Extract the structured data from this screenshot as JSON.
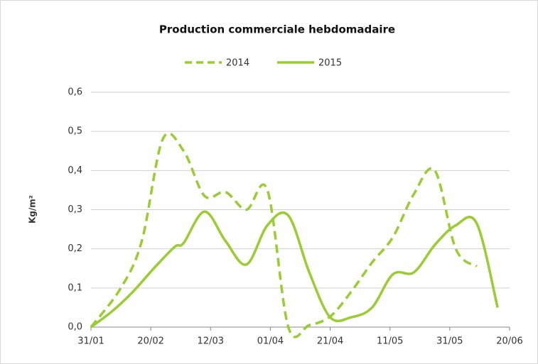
{
  "chart_data": {
    "type": "line",
    "title": "Production commerciale hebdomadaire",
    "ylabel": "Kg/m²",
    "legend": "top",
    "grid": true,
    "xlim": [
      "31/01",
      "20/06"
    ],
    "xticks": [
      "31/01",
      "20/02",
      "12/03",
      "01/04",
      "21/04",
      "11/05",
      "31/05",
      "20/06"
    ],
    "ylim": [
      0,
      0.6
    ],
    "yticks": [
      {
        "value": 0,
        "label": "0,0"
      },
      {
        "value": 0.1,
        "label": "0,1"
      },
      {
        "value": 0.2,
        "label": "0,2"
      },
      {
        "value": 0.3,
        "label": "0,3"
      },
      {
        "value": 0.4,
        "label": "0,4"
      },
      {
        "value": 0.5,
        "label": "0,5"
      },
      {
        "value": 0.6,
        "label": "0,6"
      }
    ],
    "series": [
      {
        "name": "2014",
        "color": "#9ACD32",
        "line_style": "dashed",
        "x": [
          "31/01",
          "10/02",
          "17/02",
          "24/02",
          "03/03",
          "10/03",
          "17/03",
          "24/03",
          "31/03",
          "07/04",
          "14/04",
          "21/04",
          "28/04",
          "05/05",
          "12/05",
          "19/05",
          "26/05",
          "02/06",
          "09/06"
        ],
        "values": [
          0.0,
          0.1,
          0.22,
          0.48,
          0.45,
          0.335,
          0.345,
          0.3,
          0.35,
          0.0,
          0.005,
          0.027,
          0.09,
          0.165,
          0.23,
          0.34,
          0.4,
          0.2,
          0.155
        ]
      },
      {
        "name": "2015",
        "color": "#9ACD32",
        "line_style": "solid",
        "x": [
          "31/01",
          "07/02",
          "14/02",
          "21/02",
          "28/02",
          "03/03",
          "10/03",
          "17/03",
          "24/03",
          "31/03",
          "07/04",
          "14/04",
          "21/04",
          "28/04",
          "05/05",
          "12/05",
          "19/05",
          "26/05",
          "02/06",
          "09/06",
          "16/06"
        ],
        "values": [
          0.0,
          0.04,
          0.09,
          0.15,
          0.205,
          0.215,
          0.295,
          0.22,
          0.16,
          0.26,
          0.285,
          0.14,
          0.025,
          0.025,
          0.05,
          0.135,
          0.14,
          0.21,
          0.26,
          0.265,
          0.05
        ]
      }
    ]
  }
}
